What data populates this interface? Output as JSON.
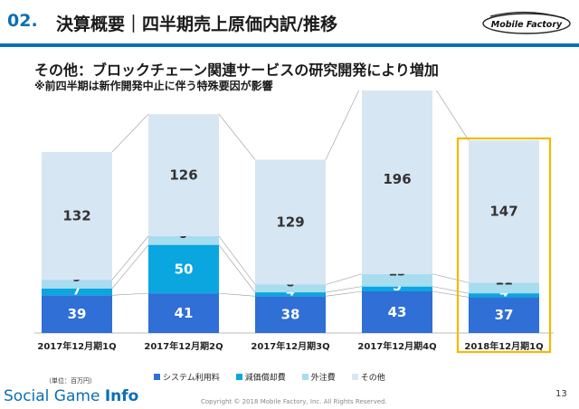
{
  "header": {
    "section_number": "02.",
    "section_title": "決算概要｜四半期売上原価内訳/推移",
    "logo_text": "Mobile Factory",
    "accent_color": "#0a6fb5"
  },
  "headline": "その他：ブロックチェーン関連サービスの研究開発により増加",
  "subheadline": "※前四半期は新作開発中止に伴う特殊要因が影響",
  "unit_label": "（単位：百万円）",
  "chart_data": {
    "type": "bar",
    "stacked": true,
    "categories": [
      "2017年12月期1Q",
      "2017年12月期2Q",
      "2017年12月期3Q",
      "2017年12月期4Q",
      "2018年12月期1Q"
    ],
    "series": [
      {
        "name": "システム利用料",
        "color": "#2f6fd6",
        "values": [
          39,
          41,
          38,
          43,
          37
        ]
      },
      {
        "name": "減価償却費",
        "color": "#0aa6e0",
        "values": [
          7,
          50,
          4,
          5,
          4
        ]
      },
      {
        "name": "外注費",
        "color": "#a8dcef",
        "values": [
          9,
          9,
          8,
          13,
          11
        ]
      },
      {
        "name": "その他",
        "color": "#d7e6f3",
        "values": [
          132,
          126,
          129,
          196,
          147
        ]
      }
    ],
    "highlight_index": 4,
    "highlight_color": "#f5b800",
    "legend_position": "bottom"
  },
  "footer": {
    "brand_light": "Social Game ",
    "brand_bold": "Info",
    "copyright": "Copyright © 2018 Mobile Factory, Inc. All Rights Reserved.",
    "page_number": "13"
  }
}
